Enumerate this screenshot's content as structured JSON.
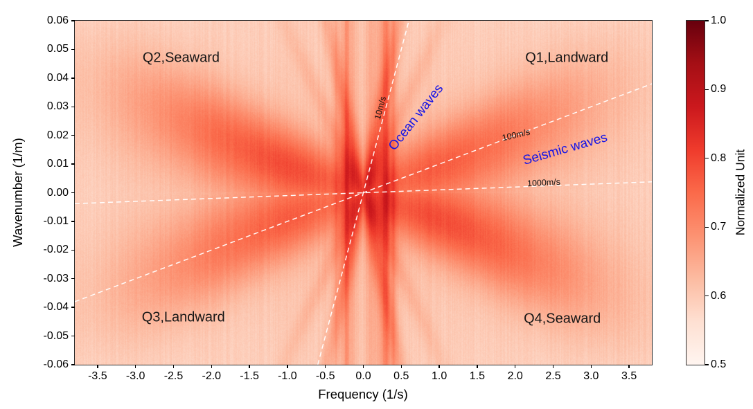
{
  "axes": {
    "xlabel": "Frequency (1/s)",
    "ylabel": "Wavenumber (1/m)",
    "xlim": [
      -3.8,
      3.8
    ],
    "ylim": [
      -0.06,
      0.06
    ],
    "xticks": {
      "values": [
        -3.5,
        -3.0,
        -2.5,
        -2.0,
        -1.5,
        -1.0,
        -0.5,
        0.0,
        0.5,
        1.0,
        1.5,
        2.0,
        2.5,
        3.0,
        3.5
      ],
      "labels": [
        "-3.5",
        "-3.0",
        "-2.5",
        "-2.0",
        "-1.5",
        "-1.0",
        "-0.5",
        "0.0",
        "0.5",
        "1.0",
        "1.5",
        "2.0",
        "2.5",
        "3.0",
        "3.5"
      ]
    },
    "yticks": {
      "values": [
        0.06,
        0.05,
        0.04,
        0.03,
        0.02,
        0.01,
        0.0,
        -0.01,
        -0.02,
        -0.03,
        -0.04,
        -0.05,
        -0.06
      ],
      "labels": [
        "0.06",
        "0.05",
        "0.04",
        "0.03",
        "0.02",
        "0.01",
        "0.00",
        "-0.01",
        "-0.02",
        "-0.03",
        "-0.04",
        "-0.05",
        "-0.06"
      ]
    }
  },
  "colorbar": {
    "label": "Normalized Unit",
    "min": 0.5,
    "max": 1.0,
    "ticks": {
      "values": [
        1.0,
        0.9,
        0.8,
        0.7,
        0.6,
        0.5
      ],
      "labels": [
        "1.0",
        "0.9",
        "0.8",
        "0.7",
        "0.6",
        "0.5"
      ]
    },
    "colormap": "Reds",
    "stops": [
      "#fff5f0",
      "#fee0d2",
      "#fcbba1",
      "#fc9272",
      "#fb6a4a",
      "#ef3b2c",
      "#cb181d",
      "#a50f15",
      "#67000d"
    ]
  },
  "chart_data": {
    "type": "heatmap",
    "title": "",
    "xlabel": "Frequency (1/s)",
    "ylabel": "Wavenumber (1/m)",
    "xlim": [
      -3.8,
      3.8
    ],
    "ylim": [
      -0.06,
      0.06
    ],
    "value_label": "Normalized Unit",
    "value_range": [
      0.5,
      1.0
    ],
    "colormap": "Reds",
    "description": "Frequency-wavenumber (f-k) power spectrum. Dark red energy forms a steep V of ocean-wave branches around the origin with near-vertical bands at f of -0.22, 0.06 and 0.28 1/s, plus shallow seismic bow-tie wings along |k| = 0.0105|f| extending to |f| = 3.7.",
    "quadrant_labels": [
      {
        "text": "Q2,Seaward",
        "f": -2.4,
        "k": 0.047
      },
      {
        "text": "Q1,Landward",
        "f": 2.68,
        "k": 0.047
      },
      {
        "text": "Q3,Landward",
        "f": -2.37,
        "k": -0.0435
      },
      {
        "text": "Q4,Seaward",
        "f": 2.62,
        "k": -0.044
      }
    ],
    "reference_lines": [
      {
        "label": "10m/s",
        "speed_m_per_s": 10,
        "style": "white-dashed"
      },
      {
        "label": "100m/s",
        "speed_m_per_s": 100,
        "style": "white-dashed"
      },
      {
        "label": "1000m/s",
        "speed_m_per_s": 1000,
        "style": "white-dashed"
      }
    ],
    "speed_labels": [
      {
        "text": "10m/s",
        "f": 0.22,
        "k": 0.0295,
        "rotation_deg": -75
      },
      {
        "text": "100m/s",
        "f": 2.01,
        "k": 0.0202,
        "rotation_deg": -13
      },
      {
        "text": "1000m/s",
        "f": 2.38,
        "k": 0.0035,
        "rotation_deg": -3
      }
    ],
    "wave_annotations": [
      {
        "text": "Ocean waves",
        "color": "#1414e6",
        "f": 0.7,
        "k": 0.0262,
        "rotation_deg": -52
      },
      {
        "text": "Seismic waves",
        "color": "#1414e6",
        "f": 2.66,
        "k": 0.0152,
        "rotation_deg": -16
      }
    ],
    "heatmap_model": {
      "seed": 42,
      "base": 0.215,
      "vignette": 0.05,
      "vertical_bands": [
        {
          "c": 0.28,
          "s": 0.1,
          "a": 0.16
        },
        {
          "c": -0.2,
          "s": 0.09,
          "a": 0.13
        },
        {
          "c": 0.06,
          "s": 0.07,
          "a": 0.1
        },
        {
          "c": 0.3,
          "s": 0.03,
          "a": 0.12
        },
        {
          "c": -0.22,
          "s": 0.022,
          "a": 0.11
        },
        {
          "c": 0.4,
          "s": 0.018,
          "a": 0.1
        },
        {
          "c": -0.35,
          "s": 0.03,
          "a": 0.06
        }
      ],
      "x_branches": [
        {
          "slope": 0.125,
          "sigma": 0.075,
          "a": 0.22,
          "f_cut": 0.85
        },
        {
          "slope": 0.057,
          "sigma": 0.09,
          "a": 0.11,
          "f_cut": 1.3
        }
      ],
      "wings": {
        "slope": 0.0105,
        "sigma0": 0.0065,
        "sigma1": 0.0028,
        "a": 0.27,
        "f_peak": 1.4,
        "f_width": 1.8,
        "seaward_boost": 1.12,
        "landward_boost": 0.95
      },
      "halo": {
        "a": 0.1,
        "k_sigma": 0.013,
        "f_peak": 0.85,
        "f_width": 1.0
      },
      "center_light_stripe": {
        "a": 0.05,
        "sigma": 0.04
      },
      "noise": {
        "column": 0.02,
        "speckle": 0.035
      }
    }
  }
}
